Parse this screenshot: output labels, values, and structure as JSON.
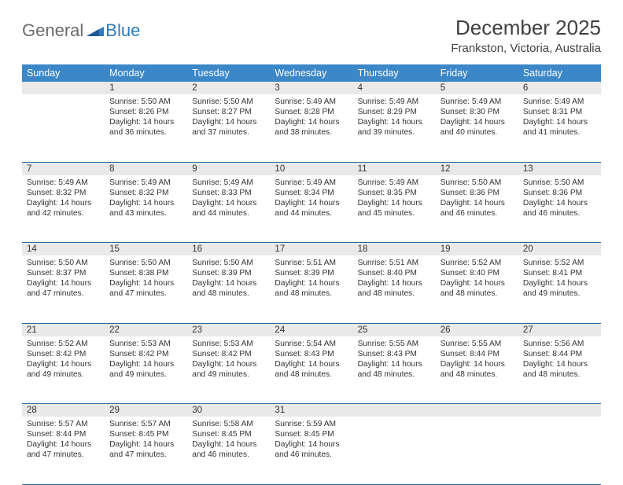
{
  "logo": {
    "word1": "General",
    "word2": "Blue"
  },
  "title": "December 2025",
  "location": "Frankston, Victoria, Australia",
  "colors": {
    "header_bg": "#3b87c8",
    "header_fg": "#ffffff",
    "daynum_bg": "#e9e9e9",
    "row_border": "#2a6aa3",
    "logo_gray": "#6a6a6a",
    "logo_blue": "#2f7bbf"
  },
  "weekdays": [
    "Sunday",
    "Monday",
    "Tuesday",
    "Wednesday",
    "Thursday",
    "Friday",
    "Saturday"
  ],
  "weeks": [
    {
      "nums": [
        "",
        "1",
        "2",
        "3",
        "4",
        "5",
        "6"
      ],
      "cells": [
        null,
        {
          "sunrise": "5:50 AM",
          "sunset": "8:26 PM",
          "daylight": "14 hours and 36 minutes."
        },
        {
          "sunrise": "5:50 AM",
          "sunset": "8:27 PM",
          "daylight": "14 hours and 37 minutes."
        },
        {
          "sunrise": "5:49 AM",
          "sunset": "8:28 PM",
          "daylight": "14 hours and 38 minutes."
        },
        {
          "sunrise": "5:49 AM",
          "sunset": "8:29 PM",
          "daylight": "14 hours and 39 minutes."
        },
        {
          "sunrise": "5:49 AM",
          "sunset": "8:30 PM",
          "daylight": "14 hours and 40 minutes."
        },
        {
          "sunrise": "5:49 AM",
          "sunset": "8:31 PM",
          "daylight": "14 hours and 41 minutes."
        }
      ]
    },
    {
      "nums": [
        "7",
        "8",
        "9",
        "10",
        "11",
        "12",
        "13"
      ],
      "cells": [
        {
          "sunrise": "5:49 AM",
          "sunset": "8:32 PM",
          "daylight": "14 hours and 42 minutes."
        },
        {
          "sunrise": "5:49 AM",
          "sunset": "8:32 PM",
          "daylight": "14 hours and 43 minutes."
        },
        {
          "sunrise": "5:49 AM",
          "sunset": "8:33 PM",
          "daylight": "14 hours and 44 minutes."
        },
        {
          "sunrise": "5:49 AM",
          "sunset": "8:34 PM",
          "daylight": "14 hours and 44 minutes."
        },
        {
          "sunrise": "5:49 AM",
          "sunset": "8:35 PM",
          "daylight": "14 hours and 45 minutes."
        },
        {
          "sunrise": "5:50 AM",
          "sunset": "8:36 PM",
          "daylight": "14 hours and 46 minutes."
        },
        {
          "sunrise": "5:50 AM",
          "sunset": "8:36 PM",
          "daylight": "14 hours and 46 minutes."
        }
      ]
    },
    {
      "nums": [
        "14",
        "15",
        "16",
        "17",
        "18",
        "19",
        "20"
      ],
      "cells": [
        {
          "sunrise": "5:50 AM",
          "sunset": "8:37 PM",
          "daylight": "14 hours and 47 minutes."
        },
        {
          "sunrise": "5:50 AM",
          "sunset": "8:38 PM",
          "daylight": "14 hours and 47 minutes."
        },
        {
          "sunrise": "5:50 AM",
          "sunset": "8:39 PM",
          "daylight": "14 hours and 48 minutes."
        },
        {
          "sunrise": "5:51 AM",
          "sunset": "8:39 PM",
          "daylight": "14 hours and 48 minutes."
        },
        {
          "sunrise": "5:51 AM",
          "sunset": "8:40 PM",
          "daylight": "14 hours and 48 minutes."
        },
        {
          "sunrise": "5:52 AM",
          "sunset": "8:40 PM",
          "daylight": "14 hours and 48 minutes."
        },
        {
          "sunrise": "5:52 AM",
          "sunset": "8:41 PM",
          "daylight": "14 hours and 49 minutes."
        }
      ]
    },
    {
      "nums": [
        "21",
        "22",
        "23",
        "24",
        "25",
        "26",
        "27"
      ],
      "cells": [
        {
          "sunrise": "5:52 AM",
          "sunset": "8:42 PM",
          "daylight": "14 hours and 49 minutes."
        },
        {
          "sunrise": "5:53 AM",
          "sunset": "8:42 PM",
          "daylight": "14 hours and 49 minutes."
        },
        {
          "sunrise": "5:53 AM",
          "sunset": "8:42 PM",
          "daylight": "14 hours and 49 minutes."
        },
        {
          "sunrise": "5:54 AM",
          "sunset": "8:43 PM",
          "daylight": "14 hours and 48 minutes."
        },
        {
          "sunrise": "5:55 AM",
          "sunset": "8:43 PM",
          "daylight": "14 hours and 48 minutes."
        },
        {
          "sunrise": "5:55 AM",
          "sunset": "8:44 PM",
          "daylight": "14 hours and 48 minutes."
        },
        {
          "sunrise": "5:56 AM",
          "sunset": "8:44 PM",
          "daylight": "14 hours and 48 minutes."
        }
      ]
    },
    {
      "nums": [
        "28",
        "29",
        "30",
        "31",
        "",
        "",
        ""
      ],
      "cells": [
        {
          "sunrise": "5:57 AM",
          "sunset": "8:44 PM",
          "daylight": "14 hours and 47 minutes."
        },
        {
          "sunrise": "5:57 AM",
          "sunset": "8:45 PM",
          "daylight": "14 hours and 47 minutes."
        },
        {
          "sunrise": "5:58 AM",
          "sunset": "8:45 PM",
          "daylight": "14 hours and 46 minutes."
        },
        {
          "sunrise": "5:59 AM",
          "sunset": "8:45 PM",
          "daylight": "14 hours and 46 minutes."
        },
        null,
        null,
        null
      ]
    }
  ],
  "labels": {
    "sunrise": "Sunrise:",
    "sunset": "Sunset:",
    "daylight": "Daylight:"
  }
}
